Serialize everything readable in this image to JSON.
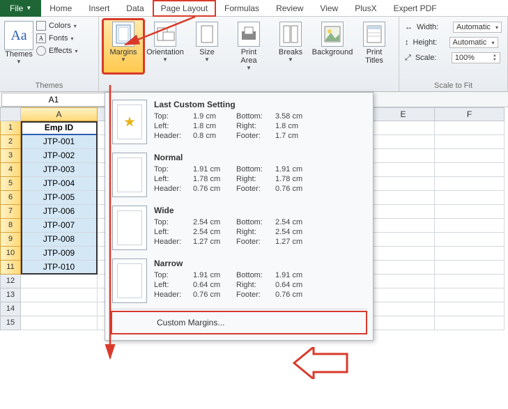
{
  "tabs": {
    "file": "File",
    "items": [
      "Home",
      "Insert",
      "Data",
      "Page Layout",
      "Formulas",
      "Review",
      "View",
      "PlusX",
      "Expert PDF"
    ],
    "highlighted": "Page Layout"
  },
  "themes_group": {
    "label": "Themes",
    "themes_btn": "Themes",
    "colors": "Colors",
    "fonts": "Fonts",
    "effects": "Effects"
  },
  "page_setup": {
    "margins": "Margins",
    "orientation": "Orientation",
    "size": "Size",
    "print_area": "Print\nArea",
    "breaks": "Breaks",
    "background": "Background",
    "print_titles": "Print\nTitles"
  },
  "scale_group": {
    "label": "Scale to Fit",
    "width_lbl": "Width:",
    "width_val": "Automatic",
    "height_lbl": "Height:",
    "height_val": "Automatic",
    "scale_lbl": "Scale:",
    "scale_val": "100%"
  },
  "namebox": "A1",
  "columns": [
    "A",
    "E",
    "F"
  ],
  "col_A_header": "Emp ID",
  "col_A_data": [
    "JTP-001",
    "JTP-002",
    "JTP-003",
    "JTP-004",
    "JTP-005",
    "JTP-006",
    "JTP-007",
    "JTP-008",
    "JTP-009",
    "JTP-010"
  ],
  "empty_rows": [
    "12",
    "13",
    "14",
    "15"
  ],
  "dropdown": {
    "last": {
      "title": "Last Custom Setting",
      "top_l": "Top:",
      "top_v": "1.9 cm",
      "bottom_l": "Bottom:",
      "bottom_v": "3.58 cm",
      "left_l": "Left:",
      "left_v": "1.8 cm",
      "right_l": "Right:",
      "right_v": "1.8 cm",
      "header_l": "Header:",
      "header_v": "0.8 cm",
      "footer_l": "Footer:",
      "footer_v": "1.7 cm"
    },
    "normal": {
      "title": "Normal",
      "top_l": "Top:",
      "top_v": "1.91 cm",
      "bottom_l": "Bottom:",
      "bottom_v": "1.91 cm",
      "left_l": "Left:",
      "left_v": "1.78 cm",
      "right_l": "Right:",
      "right_v": "1.78 cm",
      "header_l": "Header:",
      "header_v": "0.76 cm",
      "footer_l": "Footer:",
      "footer_v": "0.76 cm"
    },
    "wide": {
      "title": "Wide",
      "top_l": "Top:",
      "top_v": "2.54 cm",
      "bottom_l": "Bottom:",
      "bottom_v": "2.54 cm",
      "left_l": "Left:",
      "left_v": "2.54 cm",
      "right_l": "Right:",
      "right_v": "2.54 cm",
      "header_l": "Header:",
      "header_v": "1.27 cm",
      "footer_l": "Footer:",
      "footer_v": "1.27 cm"
    },
    "narrow": {
      "title": "Narrow",
      "top_l": "Top:",
      "top_v": "1.91 cm",
      "bottom_l": "Bottom:",
      "bottom_v": "1.91 cm",
      "left_l": "Left:",
      "left_v": "0.64 cm",
      "right_l": "Right:",
      "right_v": "0.64 cm",
      "header_l": "Header:",
      "header_v": "0.76 cm",
      "footer_l": "Footer:",
      "footer_v": "0.76 cm"
    },
    "custom": "Custom Margins..."
  },
  "colors": {
    "annotation": "#d93a2b",
    "file_tab": "#1e6636",
    "selected_hdr": "#ffd978",
    "data_bg": "#d4e7f5"
  }
}
